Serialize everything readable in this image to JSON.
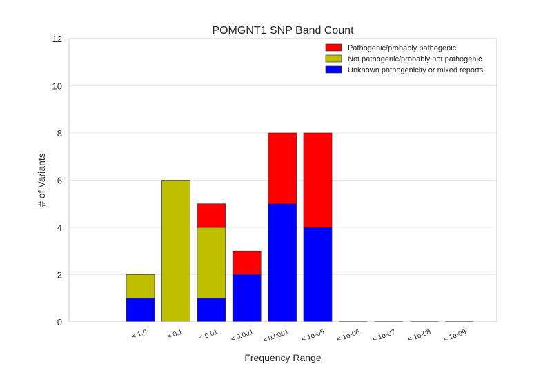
{
  "chart_data": {
    "type": "bar",
    "stacked": true,
    "title": "POMGNT1 SNP Band Count",
    "xlabel": "Frequency Range",
    "ylabel": "# of Variants",
    "ylim": [
      0,
      12
    ],
    "yticks": [
      "0",
      "2",
      "4",
      "6",
      "8",
      "10",
      "12"
    ],
    "grid": true,
    "legend_position": "top-right",
    "categories": [
      "< 1.0",
      "< 0.1",
      "< 0.01",
      "< 0.001",
      "< 0.0001",
      "< 1e-05",
      "< 1e-06",
      "< 1e-07",
      "< 1e-08",
      "< 1e-09"
    ],
    "series": [
      {
        "name": "Unknown pathogenicity or mixed reports",
        "color": "#0000ff",
        "values": [
          1,
          0,
          1,
          2,
          5,
          4,
          0,
          0,
          0,
          0
        ]
      },
      {
        "name": "Not pathogenic/probably not pathogenic",
        "color": "#bfbf00",
        "values": [
          1,
          6,
          3,
          0,
          0,
          0,
          0,
          0,
          0,
          0
        ]
      },
      {
        "name": "Pathogenic/probably pathogenic",
        "color": "#ff0000",
        "values": [
          0,
          0,
          1,
          1,
          3,
          4,
          0,
          0,
          0,
          0
        ]
      }
    ],
    "legend_order": [
      2,
      1,
      0
    ]
  }
}
